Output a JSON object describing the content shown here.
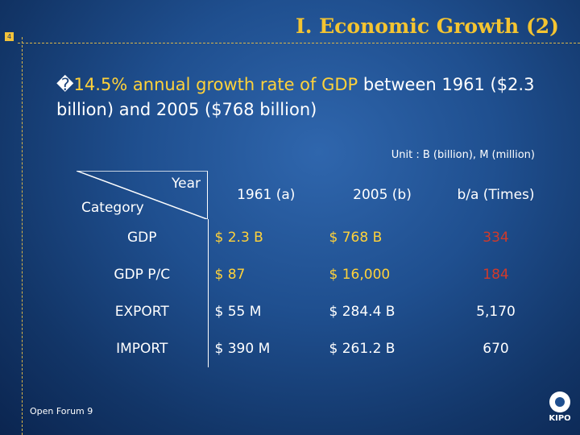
{
  "slide": {
    "page_number": "4",
    "title": "Ⅰ. Economic Growth (2)",
    "bullet_glyph": "�",
    "bullet_part1": "14.5% annual growth rate of GDP",
    "bullet_part2": " between 1961 ($2.3 billion) and 2005 ($768 billion)",
    "unit_note": "Unit : B (billion), M (million)",
    "footer": "Open Forum 9",
    "logo_text": "KIPO"
  },
  "table": {
    "corner_top": "Year",
    "corner_bottom": "Category",
    "headers": [
      "1961 (a)",
      "2005 (b)",
      "b/a (Times)"
    ],
    "rows": [
      {
        "category": "GDP",
        "v1961": "$ 2.3 B",
        "v2005": "$ 768 B",
        "ratio": "334"
      },
      {
        "category": "GDP P/C",
        "v1961": "$ 87",
        "v2005": "$ 16,000",
        "ratio": "184"
      },
      {
        "category": "EXPORT",
        "v1961": "$ 55 M",
        "v2005": "$ 284.4 B",
        "ratio": "5,170"
      },
      {
        "category": "IMPORT",
        "v1961": "$ 390 M",
        "v2005": "$ 261.2 B",
        "ratio": "670"
      }
    ]
  },
  "colors": {
    "title": "#f4c431",
    "highlight": "#ffd23a",
    "ratio_highlight": "#d23a2a",
    "background": "#1f4f8f"
  }
}
